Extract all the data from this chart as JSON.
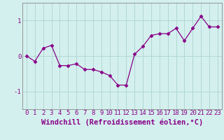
{
  "x": [
    0,
    1,
    2,
    3,
    4,
    5,
    6,
    7,
    8,
    9,
    10,
    11,
    12,
    13,
    14,
    15,
    16,
    17,
    18,
    19,
    20,
    21,
    22,
    23
  ],
  "y": [
    0.0,
    -0.15,
    0.22,
    0.3,
    -0.27,
    -0.27,
    -0.22,
    -0.38,
    -0.38,
    -0.45,
    -0.55,
    -0.82,
    -0.82,
    0.05,
    0.27,
    0.58,
    0.63,
    0.63,
    0.78,
    0.43,
    0.78,
    1.12,
    0.82,
    0.82
  ],
  "line_color": "#880088",
  "marker": "D",
  "marker_size": 2.5,
  "bg_color": "#d4f0ee",
  "grid_color": "#b0d8d4",
  "xlabel": "Windchill (Refroidissement éolien,°C)",
  "xlabel_fontsize": 7.5,
  "tick_fontsize": 6.5,
  "ylim": [
    -1.5,
    1.5
  ],
  "xlim": [
    -0.5,
    23.5
  ],
  "yticks": [
    -1,
    0,
    1
  ],
  "xticks": [
    0,
    1,
    2,
    3,
    4,
    5,
    6,
    7,
    8,
    9,
    10,
    11,
    12,
    13,
    14,
    15,
    16,
    17,
    18,
    19,
    20,
    21,
    22,
    23
  ]
}
